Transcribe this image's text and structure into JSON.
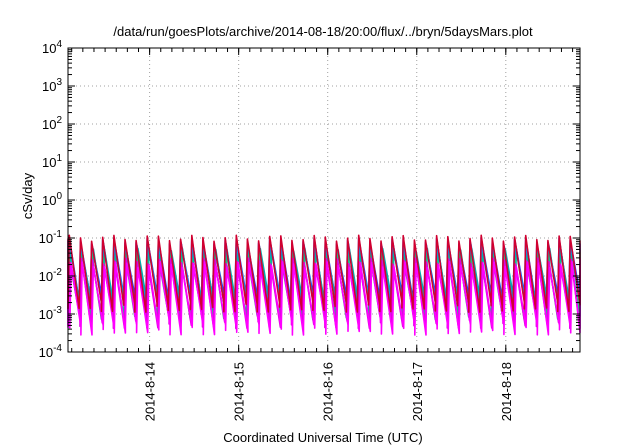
{
  "chart_data": {
    "type": "line",
    "title": "/data/run/goesPlots/archive/2014-08-18/20:00/flux/../bryn/5daysMars.plot",
    "xlabel": "Coordinated Universal Time (UTC)",
    "ylabel": "cSv/day",
    "y_scale": "log",
    "ylim": [
      0.0001,
      10000
    ],
    "xlim": [
      "2014-08-13 02:00",
      "2014-08-18 20:00"
    ],
    "y_ticks": [
      {
        "base": "10",
        "exp": "-4"
      },
      {
        "base": "10",
        "exp": "-3"
      },
      {
        "base": "10",
        "exp": "-2"
      },
      {
        "base": "10",
        "exp": "-1"
      },
      {
        "base": "10",
        "exp": "0"
      },
      {
        "base": "10",
        "exp": "1"
      },
      {
        "base": "10",
        "exp": "2"
      },
      {
        "base": "10",
        "exp": "3"
      },
      {
        "base": "10",
        "exp": "4"
      }
    ],
    "x_ticks": [
      "2014-8-14",
      "2014-8-15",
      "2014-8-16",
      "2014-8-17",
      "2014-8-18"
    ],
    "grid": true,
    "legend": "none",
    "pattern": "sawtooth, period ~3 h, each trace falls ~1.5 decades per cycle",
    "series": [
      {
        "color": "#1f3fff",
        "values_at_cycle_peak_and_trough": [
          0.085,
          0.0028
        ]
      },
      {
        "color": "#00a0ff",
        "values_at_cycle_peak_and_trough": [
          0.06,
          0.0017
        ]
      },
      {
        "color": "#00b0b0",
        "values_at_cycle_peak_and_trough": [
          0.045,
          0.0013
        ]
      },
      {
        "color": "#20c080",
        "values_at_cycle_peak_and_trough": [
          0.035,
          0.001
        ]
      },
      {
        "color": "#e000e0",
        "values_at_cycle_peak_and_trough": [
          0.025,
          0.0006
        ]
      },
      {
        "color": "#ff00ff",
        "values_at_cycle_peak_and_trough": [
          0.02,
          0.0004
        ]
      },
      {
        "color": "#d00030",
        "values_at_cycle_peak_and_trough": [
          0.1,
          0.0016
        ]
      }
    ]
  }
}
